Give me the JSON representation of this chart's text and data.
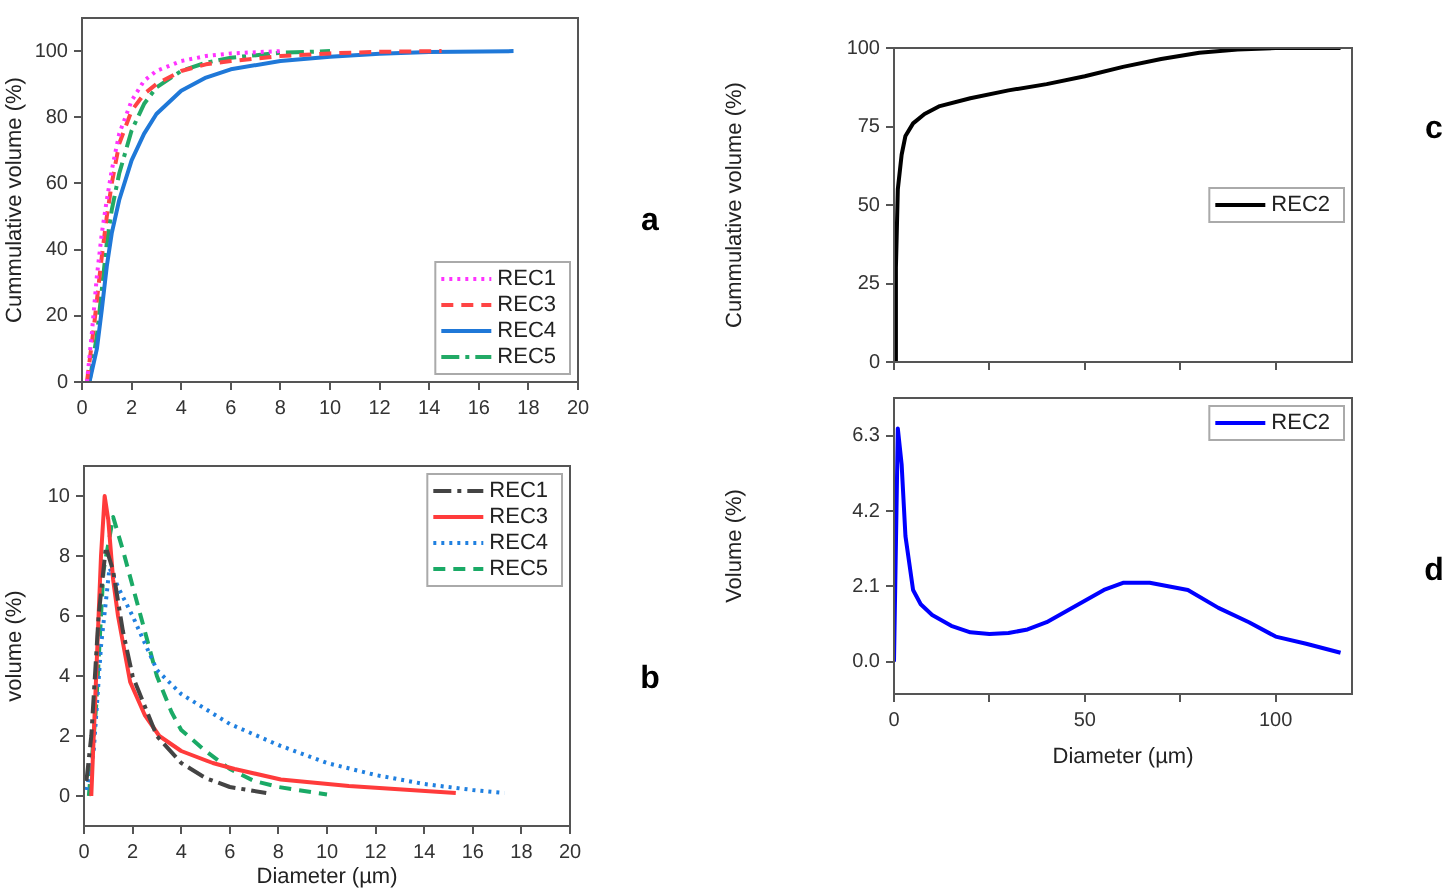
{
  "chart_data": [
    {
      "type": "line",
      "ylabel": "Cummulative volume (%)",
      "xlim": [
        0,
        20
      ],
      "xticks": [
        0,
        2,
        4,
        6,
        8,
        10,
        12,
        14,
        16,
        18,
        20
      ],
      "ylim": [
        0,
        110
      ],
      "yticks": [
        0,
        20,
        40,
        60,
        80,
        100
      ],
      "legend": "bottom right",
      "annotations": [
        "a"
      ],
      "series": [
        {
          "name": "REC1",
          "color": "#ff33ff",
          "line_style": "dotted",
          "x": [
            0.2,
            0.4,
            0.6,
            0.8,
            1.0,
            1.2,
            1.5,
            2,
            2.5,
            3,
            4,
            5,
            6,
            8
          ],
          "values": [
            0,
            15,
            32,
            45,
            55,
            64,
            75,
            85,
            91,
            94,
            97,
            98.5,
            99.3,
            100
          ]
        },
        {
          "name": "REC3",
          "color": "#ff4444",
          "line_style": "dashed",
          "x": [
            0.2,
            0.5,
            0.8,
            1,
            1.2,
            1.5,
            2,
            2.5,
            3,
            4,
            5,
            6,
            8,
            10,
            12,
            14.5
          ],
          "values": [
            0,
            18,
            38,
            50,
            60,
            72,
            82,
            87,
            90,
            94,
            96,
            97,
            98.5,
            99.3,
            99.8,
            100
          ]
        },
        {
          "name": "REC4",
          "color": "#1f78d8",
          "line_style": "solid",
          "x": [
            0.3,
            0.6,
            0.8,
            1,
            1.2,
            1.5,
            2,
            2.5,
            3,
            4,
            5,
            6,
            8,
            10,
            12,
            14,
            17.4
          ],
          "values": [
            0,
            10,
            22,
            35,
            45,
            55,
            67,
            75,
            81,
            88,
            92,
            94.5,
            97,
            98.3,
            99.2,
            99.7,
            100
          ]
        },
        {
          "name": "REC5",
          "color": "#22aa66",
          "line_style": "dashdot",
          "x": [
            0.3,
            0.6,
            0.8,
            1,
            1.2,
            1.5,
            2,
            2.5,
            3,
            4,
            5,
            6,
            8,
            10
          ],
          "values": [
            0,
            14,
            28,
            42,
            52,
            63,
            76,
            84,
            89,
            94,
            96.5,
            98,
            99.5,
            100
          ]
        }
      ]
    },
    {
      "type": "line",
      "xlabel": "Diameter (µm)",
      "ylabel": "volume (%)",
      "xlim": [
        0,
        20
      ],
      "xticks": [
        0,
        2,
        4,
        6,
        8,
        10,
        12,
        14,
        16,
        18,
        20
      ],
      "ylim": [
        -1,
        11
      ],
      "yticks": [
        0,
        2,
        4,
        6,
        8,
        10
      ],
      "legend": "top right",
      "annotations": [
        "b"
      ],
      "series": [
        {
          "name": "REC1",
          "color": "#444444",
          "line_style": "dashdot",
          "x": [
            0.1,
            0.3,
            0.6,
            0.9,
            1.2,
            1.6,
            2,
            3,
            4,
            5,
            6,
            7.5
          ],
          "values": [
            0.5,
            2,
            6,
            8.3,
            7.5,
            5.5,
            4,
            2,
            1.1,
            0.6,
            0.3,
            0.1
          ]
        },
        {
          "name": "REC3",
          "color": "#ff3b3b",
          "line_style": "solid",
          "x": [
            0.3,
            0.5,
            0.7,
            0.85,
            1.0,
            1.2,
            1.4,
            1.9,
            2.5,
            3.1,
            4,
            5.3,
            6.2,
            8.1,
            10.9,
            15.3
          ],
          "values": [
            0,
            4,
            8,
            10,
            9.2,
            7.2,
            6,
            3.8,
            2.7,
            2,
            1.5,
            1.1,
            0.9,
            0.55,
            0.33,
            0.1
          ]
        },
        {
          "name": "REC4",
          "color": "#2080e0",
          "line_style": "dotted",
          "x": [
            0.1,
            0.4,
            0.7,
            1.05,
            1.5,
            2,
            3,
            4,
            5,
            6,
            8,
            10,
            12,
            14,
            16,
            17.3
          ],
          "values": [
            0.2,
            1.5,
            5,
            7.6,
            6.8,
            6,
            4.2,
            3.4,
            2.9,
            2.4,
            1.7,
            1.1,
            0.7,
            0.4,
            0.2,
            0.1
          ]
        },
        {
          "name": "REC5",
          "color": "#1aaa66",
          "line_style": "dashed",
          "x": [
            0.2,
            0.5,
            0.8,
            1.2,
            1.6,
            2,
            2.5,
            3,
            3.6,
            4,
            5,
            6,
            7,
            8,
            10
          ],
          "values": [
            0,
            3,
            7.5,
            9.3,
            8.2,
            7,
            5.5,
            4,
            2.8,
            2.2,
            1.5,
            0.9,
            0.5,
            0.3,
            0.05
          ]
        }
      ]
    },
    {
      "type": "line",
      "ylabel": "Cummulative volume (%)",
      "xlim": [
        0,
        120
      ],
      "xticks": [
        0,
        25,
        50,
        75,
        100
      ],
      "ylim": [
        0,
        100
      ],
      "yticks": [
        0,
        25,
        50,
        75,
        100
      ],
      "tick_labels": "y",
      "legend": "right",
      "annotations": [
        "c"
      ],
      "series": [
        {
          "name": "REC2",
          "color": "#000000",
          "line_style": "solid",
          "x": [
            0,
            0.5,
            1,
            2,
            3,
            5,
            8,
            12,
            20,
            30,
            40,
            50,
            60,
            70,
            80,
            90,
            100,
            117
          ],
          "values": [
            0,
            30,
            55,
            66,
            72,
            76,
            79,
            81.5,
            84,
            86.5,
            88.5,
            91,
            94,
            96.5,
            98.5,
            99.5,
            100,
            100
          ]
        }
      ]
    },
    {
      "type": "line",
      "xlabel": "Diameter (µm)",
      "ylabel": "Volume (%)",
      "xlim": [
        0,
        120
      ],
      "xticks": [
        0,
        {
          "value": 25,
          "label": null
        },
        50,
        {
          "value": 75,
          "label": null
        },
        100
      ],
      "ylim": [
        -0.9,
        7.35
      ],
      "yticks": [
        {
          "value": 0,
          "label": "0.0"
        },
        2.1,
        4.2,
        6.3
      ],
      "legend": "top right",
      "annotations": [
        "d"
      ],
      "series": [
        {
          "name": "REC2",
          "color": "#0000ff",
          "line_style": "solid",
          "x": [
            0,
            1,
            2,
            3,
            5,
            7,
            10,
            15,
            20,
            25,
            30,
            35,
            40,
            45,
            50,
            55,
            60,
            67,
            77,
            85,
            93,
            100,
            108,
            117
          ],
          "values": [
            0,
            6.5,
            5.5,
            3.5,
            2,
            1.6,
            1.3,
            1.0,
            0.82,
            0.77,
            0.8,
            0.9,
            1.1,
            1.4,
            1.7,
            2.0,
            2.2,
            2.2,
            2.0,
            1.5,
            1.1,
            0.7,
            0.5,
            0.25
          ]
        }
      ]
    }
  ]
}
